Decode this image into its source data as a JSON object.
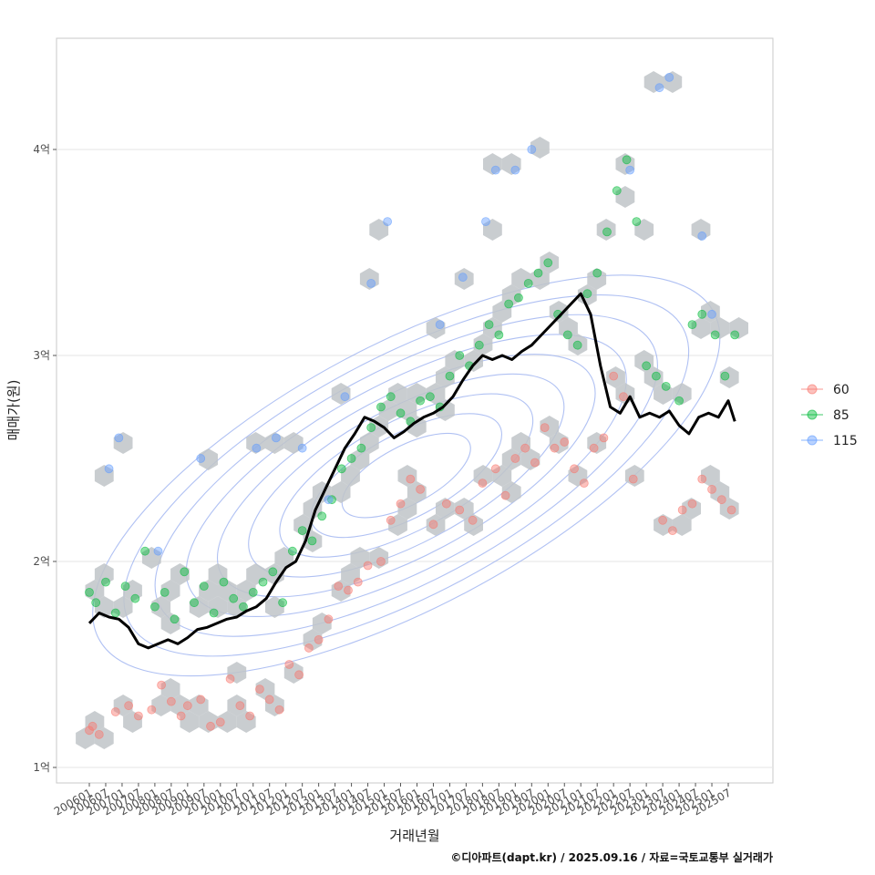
{
  "chart_data": {
    "type": "scatter",
    "xlabel": "거래년월",
    "ylabel": "매매가(원)",
    "caption": "©디아파트(dapt.kr) / 2025.09.16 / 자료=국토교통부 실거래가",
    "y_unit": "억",
    "ylim": [
      0.92,
      4.55
    ],
    "y_ticks": [
      {
        "value": 1,
        "label": "1억"
      },
      {
        "value": 2,
        "label": "2억"
      },
      {
        "value": 3,
        "label": "3억"
      },
      {
        "value": 4,
        "label": "4억"
      }
    ],
    "x_ticks": [
      "200601",
      "200607",
      "200701",
      "200707",
      "200801",
      "200807",
      "200901",
      "200907",
      "201001",
      "201007",
      "201101",
      "201107",
      "201201",
      "201207",
      "201301",
      "201307",
      "201401",
      "201407",
      "201501",
      "201507",
      "201601",
      "201607",
      "201701",
      "201707",
      "201801",
      "201807",
      "201901",
      "201907",
      "202001",
      "202007",
      "202101",
      "202107",
      "202201",
      "202207",
      "202301",
      "202307",
      "202401",
      "202407",
      "202501",
      "202507"
    ],
    "grid": true,
    "legend_position": "right",
    "colors": {
      "60": "#F8766D",
      "85": "#00BA38",
      "115": "#619CFF",
      "trend": "#000000",
      "hex": "#bfc4c8",
      "contour": "#8ea6ee"
    },
    "series": [
      {
        "name": "60",
        "color": "#F8766D",
        "points": [
          [
            2006.0,
            1.18
          ],
          [
            2006.1,
            1.2
          ],
          [
            2006.3,
            1.16
          ],
          [
            2006.8,
            1.27
          ],
          [
            2007.2,
            1.3
          ],
          [
            2007.5,
            1.25
          ],
          [
            2007.9,
            1.28
          ],
          [
            2008.2,
            1.4
          ],
          [
            2008.5,
            1.32
          ],
          [
            2008.8,
            1.25
          ],
          [
            2009.0,
            1.3
          ],
          [
            2009.4,
            1.33
          ],
          [
            2009.7,
            1.2
          ],
          [
            2010.0,
            1.22
          ],
          [
            2010.3,
            1.43
          ],
          [
            2010.6,
            1.3
          ],
          [
            2010.9,
            1.25
          ],
          [
            2011.2,
            1.38
          ],
          [
            2011.5,
            1.33
          ],
          [
            2011.8,
            1.28
          ],
          [
            2012.1,
            1.5
          ],
          [
            2012.4,
            1.45
          ],
          [
            2012.7,
            1.58
          ],
          [
            2013.0,
            1.62
          ],
          [
            2013.3,
            1.72
          ],
          [
            2013.6,
            1.88
          ],
          [
            2013.9,
            1.86
          ],
          [
            2014.2,
            1.9
          ],
          [
            2014.5,
            1.98
          ],
          [
            2014.9,
            2.0
          ],
          [
            2015.2,
            2.2
          ],
          [
            2015.5,
            2.28
          ],
          [
            2015.8,
            2.4
          ],
          [
            2016.1,
            2.35
          ],
          [
            2016.5,
            2.18
          ],
          [
            2016.9,
            2.28
          ],
          [
            2017.3,
            2.25
          ],
          [
            2017.7,
            2.2
          ],
          [
            2018.0,
            2.38
          ],
          [
            2018.4,
            2.45
          ],
          [
            2018.7,
            2.32
          ],
          [
            2019.0,
            2.5
          ],
          [
            2019.3,
            2.55
          ],
          [
            2019.6,
            2.48
          ],
          [
            2019.9,
            2.65
          ],
          [
            2020.2,
            2.55
          ],
          [
            2020.5,
            2.58
          ],
          [
            2020.8,
            2.45
          ],
          [
            2021.1,
            2.38
          ],
          [
            2021.4,
            2.55
          ],
          [
            2021.7,
            2.6
          ],
          [
            2022.0,
            2.9
          ],
          [
            2022.3,
            2.8
          ],
          [
            2022.6,
            2.4
          ],
          [
            2023.5,
            2.2
          ],
          [
            2023.8,
            2.15
          ],
          [
            2024.1,
            2.25
          ],
          [
            2024.4,
            2.28
          ],
          [
            2024.7,
            2.4
          ],
          [
            2025.0,
            2.35
          ],
          [
            2025.3,
            2.3
          ],
          [
            2025.6,
            2.25
          ]
        ]
      },
      {
        "name": "85",
        "color": "#00BA38",
        "points": [
          [
            2006.0,
            1.85
          ],
          [
            2006.2,
            1.8
          ],
          [
            2006.5,
            1.9
          ],
          [
            2006.8,
            1.75
          ],
          [
            2007.1,
            1.88
          ],
          [
            2007.4,
            1.82
          ],
          [
            2007.7,
            2.05
          ],
          [
            2008.0,
            1.78
          ],
          [
            2008.3,
            1.85
          ],
          [
            2008.6,
            1.72
          ],
          [
            2008.9,
            1.95
          ],
          [
            2009.2,
            1.8
          ],
          [
            2009.5,
            1.88
          ],
          [
            2009.8,
            1.75
          ],
          [
            2010.1,
            1.9
          ],
          [
            2010.4,
            1.82
          ],
          [
            2010.7,
            1.78
          ],
          [
            2011.0,
            1.85
          ],
          [
            2011.3,
            1.9
          ],
          [
            2011.6,
            1.95
          ],
          [
            2011.9,
            1.8
          ],
          [
            2012.2,
            2.05
          ],
          [
            2012.5,
            2.15
          ],
          [
            2012.8,
            2.1
          ],
          [
            2013.1,
            2.22
          ],
          [
            2013.4,
            2.3
          ],
          [
            2013.7,
            2.45
          ],
          [
            2014.0,
            2.5
          ],
          [
            2014.3,
            2.55
          ],
          [
            2014.6,
            2.65
          ],
          [
            2014.9,
            2.75
          ],
          [
            2015.2,
            2.8
          ],
          [
            2015.5,
            2.72
          ],
          [
            2015.8,
            2.68
          ],
          [
            2016.1,
            2.78
          ],
          [
            2016.4,
            2.8
          ],
          [
            2016.7,
            2.75
          ],
          [
            2017.0,
            2.9
          ],
          [
            2017.3,
            3.0
          ],
          [
            2017.6,
            2.95
          ],
          [
            2017.9,
            3.05
          ],
          [
            2018.2,
            3.15
          ],
          [
            2018.5,
            3.1
          ],
          [
            2018.8,
            3.25
          ],
          [
            2019.1,
            3.28
          ],
          [
            2019.4,
            3.35
          ],
          [
            2019.7,
            3.4
          ],
          [
            2020.0,
            3.45
          ],
          [
            2020.3,
            3.2
          ],
          [
            2020.6,
            3.1
          ],
          [
            2020.9,
            3.05
          ],
          [
            2021.2,
            3.3
          ],
          [
            2021.5,
            3.4
          ],
          [
            2021.8,
            3.6
          ],
          [
            2022.1,
            3.8
          ],
          [
            2022.4,
            3.95
          ],
          [
            2022.7,
            3.65
          ],
          [
            2023.0,
            2.95
          ],
          [
            2023.3,
            2.9
          ],
          [
            2023.6,
            2.85
          ],
          [
            2024.0,
            2.78
          ],
          [
            2024.4,
            3.15
          ],
          [
            2024.7,
            3.2
          ],
          [
            2025.1,
            3.1
          ],
          [
            2025.4,
            2.9
          ],
          [
            2025.7,
            3.1
          ]
        ]
      },
      {
        "name": "115",
        "color": "#619CFF",
        "points": [
          [
            2006.6,
            2.45
          ],
          [
            2006.9,
            2.6
          ],
          [
            2008.1,
            2.05
          ],
          [
            2009.4,
            2.5
          ],
          [
            2011.1,
            2.55
          ],
          [
            2011.7,
            2.6
          ],
          [
            2012.5,
            2.55
          ],
          [
            2013.3,
            2.3
          ],
          [
            2013.8,
            2.8
          ],
          [
            2014.6,
            3.35
          ],
          [
            2015.1,
            3.65
          ],
          [
            2016.7,
            3.15
          ],
          [
            2017.4,
            3.38
          ],
          [
            2018.1,
            3.65
          ],
          [
            2018.4,
            3.9
          ],
          [
            2019.0,
            3.9
          ],
          [
            2019.5,
            4.0
          ],
          [
            2022.5,
            3.9
          ],
          [
            2023.4,
            4.3
          ],
          [
            2023.7,
            4.35
          ],
          [
            2024.7,
            3.58
          ],
          [
            2025.0,
            3.2
          ]
        ]
      }
    ],
    "trend": {
      "name": "trend",
      "x": [
        2006.0,
        2006.3,
        2006.6,
        2006.9,
        2007.2,
        2007.5,
        2007.8,
        2008.1,
        2008.4,
        2008.7,
        2009.0,
        2009.3,
        2009.6,
        2009.9,
        2010.2,
        2010.5,
        2010.8,
        2011.1,
        2011.4,
        2011.7,
        2012.0,
        2012.3,
        2012.6,
        2012.9,
        2013.2,
        2013.5,
        2013.8,
        2014.1,
        2014.4,
        2014.7,
        2015.0,
        2015.3,
        2015.6,
        2015.9,
        2016.2,
        2016.5,
        2016.8,
        2017.1,
        2017.4,
        2017.7,
        2018.0,
        2018.3,
        2018.6,
        2018.9,
        2019.2,
        2019.5,
        2019.8,
        2020.1,
        2020.4,
        2020.7,
        2021.0,
        2021.3,
        2021.6,
        2021.9,
        2022.2,
        2022.5,
        2022.8,
        2023.1,
        2023.4,
        2023.7,
        2024.0,
        2024.3,
        2024.6,
        2024.9,
        2025.2,
        2025.5,
        2025.7
      ],
      "y": [
        1.7,
        1.75,
        1.73,
        1.72,
        1.68,
        1.6,
        1.58,
        1.6,
        1.62,
        1.6,
        1.63,
        1.67,
        1.68,
        1.7,
        1.72,
        1.73,
        1.76,
        1.78,
        1.82,
        1.9,
        1.97,
        2.0,
        2.1,
        2.25,
        2.35,
        2.45,
        2.55,
        2.62,
        2.7,
        2.68,
        2.65,
        2.6,
        2.63,
        2.67,
        2.7,
        2.72,
        2.75,
        2.8,
        2.88,
        2.95,
        3.0,
        2.98,
        3.0,
        2.98,
        3.02,
        3.05,
        3.1,
        3.15,
        3.2,
        3.25,
        3.3,
        3.2,
        2.95,
        2.75,
        2.72,
        2.8,
        2.7,
        2.72,
        2.7,
        2.73,
        2.66,
        2.62,
        2.7,
        2.72,
        2.7,
        2.78,
        2.68
      ]
    },
    "legend": [
      "60",
      "85",
      "115"
    ]
  }
}
